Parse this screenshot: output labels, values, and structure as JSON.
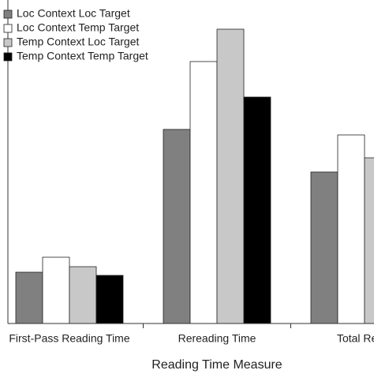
{
  "chart_data": {
    "type": "bar",
    "x_label": "Reading Time Measure",
    "categories": [
      "First-Pass Reading Time",
      "Rereading Time",
      "Total Readi"
    ],
    "series": [
      {
        "name": "Loc Context Loc Target",
        "color": "#808080",
        "values": [
          65,
          246,
          192
        ]
      },
      {
        "name": "Loc Context Temp Target",
        "color": "#ffffff",
        "values": [
          84,
          332,
          239
        ]
      },
      {
        "name": "Temp Context Loc Target",
        "color": "#c8c8c8",
        "values": [
          72,
          373,
          210
        ]
      },
      {
        "name": "Temp Context Temp Target",
        "color": "#000000",
        "values": [
          61,
          287,
          null
        ]
      }
    ],
    "ylim": [
      0,
      400
    ],
    "legend": "upper-left"
  }
}
